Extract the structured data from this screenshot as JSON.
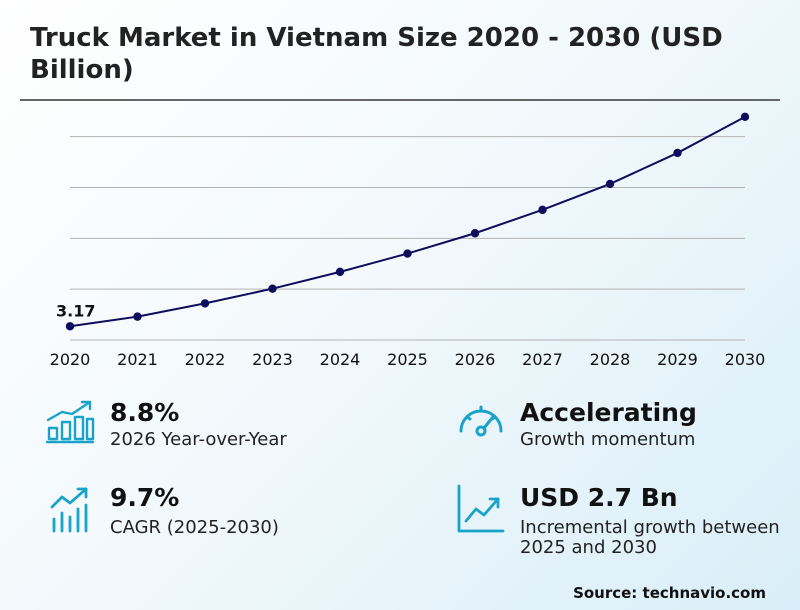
{
  "title": "Truck Market in Vietnam Size 2020 - 2030 (USD Billion)",
  "chart_data": {
    "type": "line",
    "x": [
      "2020",
      "2021",
      "2022",
      "2023",
      "2024",
      "2025",
      "2026",
      "2027",
      "2028",
      "2029",
      "2030"
    ],
    "series": [
      {
        "values": [
          3.17,
          3.36,
          3.62,
          3.91,
          4.24,
          4.6,
          5.0,
          5.46,
          5.97,
          6.58,
          7.29
        ]
      }
    ],
    "data_labels": [
      {
        "index": 0,
        "text": "3.17"
      }
    ],
    "ylim": [
      2.9,
      7.7
    ],
    "gridlines": [
      3.9,
      4.9,
      5.9,
      6.9
    ],
    "line_color": "#0d0d5c"
  },
  "stats": [
    {
      "value": "8.8%",
      "label": "2026 Year-over-Year",
      "icon": "bar-chart-growth-icon"
    },
    {
      "value": "Accelerating",
      "label": "Growth momentum",
      "icon": "speedometer-icon"
    },
    {
      "value": "9.7%",
      "label": "CAGR (2025-2030)",
      "icon": "trend-bars-icon"
    },
    {
      "value": "USD 2.7 Bn",
      "label": "Incremental growth between 2025 and 2030",
      "icon": "line-chart-icon"
    }
  ],
  "source": "Source: technavio.com",
  "accent_color": "#1aa3c8"
}
